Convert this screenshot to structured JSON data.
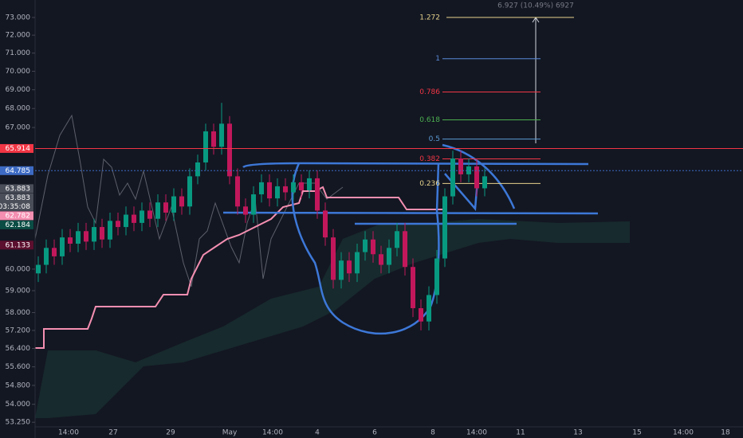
{
  "chart_data": {
    "type": "candlestick",
    "log_scale": true,
    "ylim": [
      52.6,
      74.0
    ],
    "yticks": [
      {
        "value": 73,
        "label": "73.000"
      },
      {
        "value": 72,
        "label": "72.000"
      },
      {
        "value": 71,
        "label": "71.000"
      },
      {
        "value": 70,
        "label": "70.000"
      },
      {
        "value": 69,
        "label": "69.000"
      },
      {
        "value": 68,
        "label": "68.000"
      },
      {
        "value": 67,
        "label": "67.000"
      },
      {
        "value": 60,
        "label": "60.000"
      },
      {
        "value": 59,
        "label": "59.000"
      },
      {
        "value": 58,
        "label": "58.000"
      },
      {
        "value": 57.2,
        "label": "57.200"
      },
      {
        "value": 56.4,
        "label": "56.400"
      },
      {
        "value": 55.6,
        "label": "55.600"
      },
      {
        "value": 54.8,
        "label": "54.800"
      },
      {
        "value": 54,
        "label": "54.000"
      },
      {
        "value": 53.25,
        "label": "53.250"
      }
    ],
    "x_labels": [
      "14:00",
      "27",
      "29",
      "May",
      "14:00",
      "4",
      "6",
      "8",
      "14:00",
      "11",
      "13",
      "15",
      "14:00",
      "18"
    ],
    "up_color": "#089981",
    "down_color": "#c2185b",
    "open": [
      59.8,
      60.2,
      61.0,
      60.6,
      61.5,
      61.2,
      61.8,
      61.3,
      62.0,
      61.4,
      62.3,
      62.0,
      62.6,
      62.2,
      62.8,
      62.4,
      63.2,
      62.7,
      63.5,
      63.0,
      64.5,
      65.2,
      66.8,
      66.0,
      67.2,
      64.5,
      63.0,
      62.6,
      63.6,
      64.2,
      63.4,
      64.0,
      63.7,
      64.2,
      63.8,
      64.4,
      62.8,
      61.5,
      59.5,
      60.4,
      59.8,
      60.8,
      61.4,
      60.7,
      60.2,
      61.0,
      61.8,
      60.1,
      58.2,
      57.6,
      58.8,
      60.5,
      63.5,
      65.4,
      64.6,
      65.0,
      63.9
    ],
    "high": [
      60.6,
      61.4,
      61.4,
      61.9,
      61.9,
      62.2,
      62.2,
      62.4,
      62.4,
      62.7,
      62.7,
      63.0,
      63.0,
      63.2,
      63.2,
      63.6,
      63.6,
      63.9,
      63.9,
      64.9,
      65.6,
      67.2,
      67.2,
      68.3,
      67.6,
      64.9,
      63.4,
      64.0,
      64.6,
      64.6,
      64.4,
      64.4,
      64.6,
      64.6,
      64.8,
      64.8,
      63.2,
      61.9,
      60.8,
      60.8,
      61.2,
      61.8,
      61.8,
      61.1,
      61.4,
      62.2,
      62.2,
      60.5,
      58.6,
      59.2,
      60.9,
      63.9,
      65.8,
      65.8,
      65.4,
      65.4,
      64.9
    ],
    "low": [
      59.4,
      59.8,
      60.2,
      60.2,
      60.8,
      60.8,
      60.9,
      60.9,
      61.0,
      61.0,
      61.6,
      61.6,
      61.8,
      61.8,
      62.0,
      62.0,
      62.3,
      62.3,
      62.6,
      62.6,
      64.1,
      64.8,
      65.6,
      65.6,
      64.1,
      62.6,
      62.2,
      62.2,
      63.2,
      63.0,
      63.0,
      63.3,
      63.3,
      63.4,
      63.4,
      62.4,
      61.1,
      59.1,
      59.1,
      59.4,
      59.4,
      60.4,
      60.3,
      59.8,
      59.8,
      60.6,
      59.7,
      57.8,
      57.2,
      57.2,
      58.4,
      60.1,
      63.1,
      64.2,
      64.2,
      63.5,
      63.5
    ],
    "close": [
      60.2,
      61.0,
      60.6,
      61.5,
      61.2,
      61.8,
      61.3,
      62.0,
      61.4,
      62.3,
      62.0,
      62.6,
      62.2,
      62.8,
      62.4,
      63.2,
      62.7,
      63.5,
      63.0,
      64.5,
      65.2,
      66.8,
      66.0,
      67.2,
      64.5,
      63.0,
      62.6,
      63.6,
      64.2,
      63.4,
      64.0,
      63.7,
      64.2,
      63.8,
      64.4,
      62.8,
      61.5,
      59.5,
      60.4,
      59.8,
      60.8,
      61.4,
      60.7,
      60.2,
      61.0,
      61.8,
      60.1,
      58.2,
      57.6,
      58.8,
      60.5,
      63.5,
      65.4,
      64.6,
      65.0,
      63.9,
      64.5
    ],
    "price_tags": [
      {
        "value": 65.914,
        "color": "#f23645"
      },
      {
        "value": 64.785,
        "color": "#3d6bc4"
      },
      {
        "value": 63.883,
        "color": "#4a4e59"
      },
      {
        "value": 63.883,
        "color": "#4a4e59",
        "countdown": "03:35:08"
      },
      {
        "value": 62.782,
        "color": "#f48fb1"
      },
      {
        "value": 62.184,
        "color": "#0b4d45"
      },
      {
        "value": 61.133,
        "color": "#5c0f2e"
      }
    ],
    "fib": {
      "measure_label": "6.927 (10.49%) 6927",
      "levels": [
        {
          "label": "1.272",
          "value": 73.0,
          "color": "#e6d28c"
        },
        {
          "label": "1",
          "value": 70.69,
          "color": "#5b8ad8"
        },
        {
          "label": "0.786",
          "value": 68.88,
          "color": "#f23645"
        },
        {
          "label": "0.618",
          "value": 67.4,
          "color": "#4caf50"
        },
        {
          "label": "0.5",
          "value": 66.4,
          "color": "#5b9bd5"
        },
        {
          "label": "0.382",
          "value": 65.38,
          "color": "#f23645"
        },
        {
          "label": "0.236",
          "value": 64.14,
          "color": "#e6d28c"
        }
      ]
    }
  }
}
